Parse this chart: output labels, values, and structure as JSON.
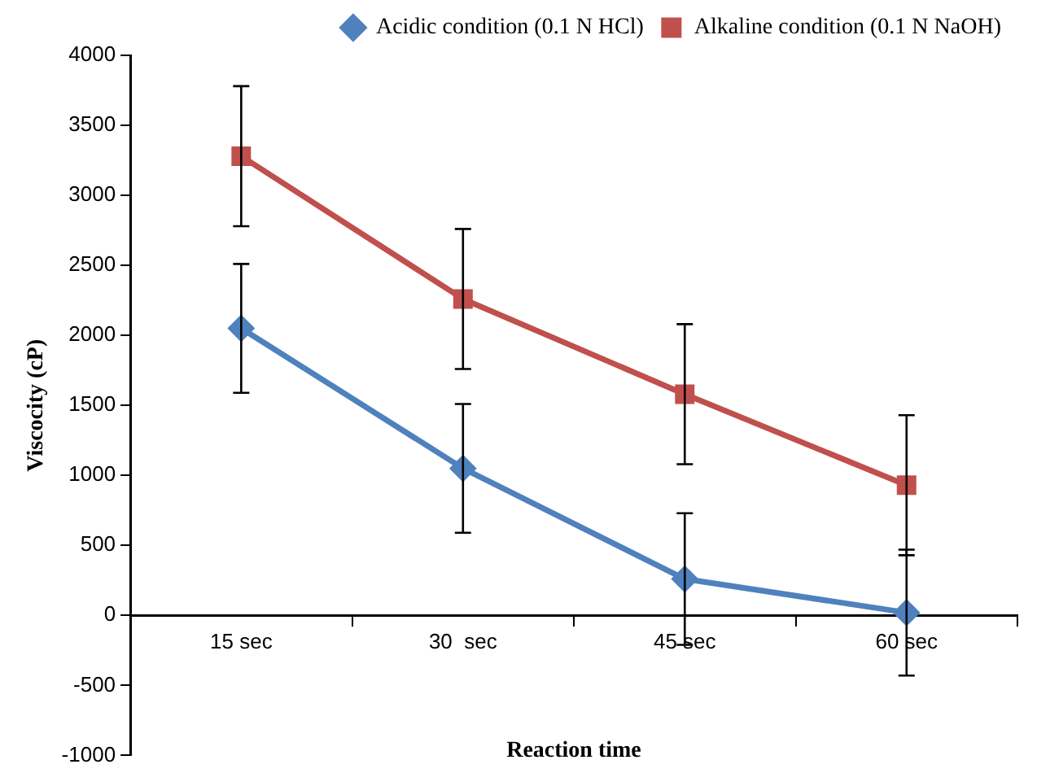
{
  "chart_data": {
    "type": "line",
    "xlabel": "Reaction time",
    "ylabel": "Viscocity (cP)",
    "categories": [
      "15 sec",
      "30  sec",
      "45 sec",
      "60 sec"
    ],
    "series": [
      {
        "name": "Acidic condition (0.1 N HCl)",
        "color": "#4f81bd",
        "marker": "diamond",
        "values": [
          2050,
          1050,
          260,
          20
        ],
        "errors": [
          460,
          460,
          470,
          450
        ]
      },
      {
        "name": "Alkaline condition (0.1 N NaOH)",
        "color": "#c0504d",
        "marker": "square",
        "values": [
          3280,
          2260,
          1580,
          930
        ],
        "errors": [
          500,
          500,
          500,
          500
        ]
      }
    ],
    "ylim": [
      -1000,
      4000
    ],
    "yticks": [
      -1000,
      -500,
      0,
      500,
      1000,
      1500,
      2000,
      2500,
      3000,
      3500,
      4000
    ],
    "grid": false,
    "legend": "top right",
    "line_style": "solid"
  }
}
